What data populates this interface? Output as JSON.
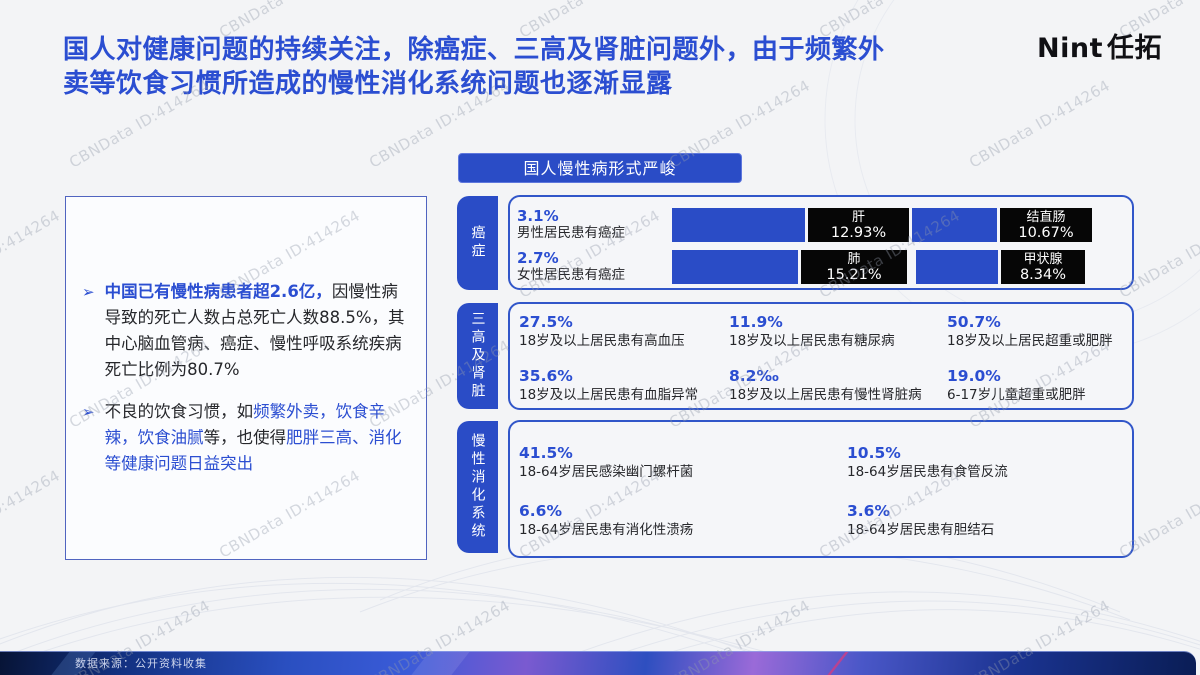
{
  "header": {
    "title_lines": [
      "国人对健康问题的持续关注，除癌症、三高及肾脏问题外，由于频繁外",
      "卖等饮食习惯所造成的慢性消化系统问题也逐渐显露"
    ],
    "logo_latin": "Nint",
    "logo_cjk": "任拓"
  },
  "banner": {
    "label": "国人慢性病形式严峻"
  },
  "left_panel": {
    "bullets": [
      {
        "segments": [
          {
            "text": "中国已有慢性病患者超2.6亿，",
            "blue": true,
            "bold": true
          },
          {
            "text": "因慢性病导致的死亡人数占总死亡人数88.5%，其中心脑血管病、癌症、慢性呼吸系统疾病死亡比例为80.7%",
            "blue": false
          }
        ]
      },
      {
        "segments": [
          {
            "text": "不良的饮食习惯，如",
            "blue": false
          },
          {
            "text": "频繁外卖，饮食辛辣，饮食油腻",
            "blue": true
          },
          {
            "text": "等，也使得",
            "blue": false
          },
          {
            "text": "肥胖三高、消化等健康问题日益突出",
            "blue": true
          }
        ]
      }
    ]
  },
  "sections": {
    "cancer": {
      "tab": "癌症",
      "rows": [
        {
          "value": "3.1%",
          "label": "男性居民患有癌症",
          "organs": [
            {
              "name": "肝",
              "pct": "12.93%"
            },
            {
              "name": "结直肠",
              "pct": "10.67%"
            }
          ]
        },
        {
          "value": "2.7%",
          "label": "女性居民患有癌症",
          "organs": [
            {
              "name": "肺",
              "pct": "15.21%"
            },
            {
              "name": "甲状腺",
              "pct": "8.34%"
            }
          ]
        }
      ]
    },
    "three_highs_kidney": {
      "tab": "三高及肾脏",
      "items": [
        {
          "value": "27.5%",
          "label": "18岁及以上居民患有高血压"
        },
        {
          "value": "11.9%",
          "label": "18岁及以上居民患有糖尿病"
        },
        {
          "value": "50.7%",
          "label": "18岁及以上居民超重或肥胖"
        },
        {
          "value": "35.6%",
          "label": "18岁及以上居民患有血脂异常"
        },
        {
          "value": "8.2‰",
          "label": "18岁及以上居民患有慢性肾脏病"
        },
        {
          "value": "19.0%",
          "label": "6-17岁儿童超重或肥胖"
        }
      ]
    },
    "digestive": {
      "tab": "慢性消化系统",
      "items": [
        {
          "value": "41.5%",
          "label": "18-64岁居民感染幽门螺杆菌"
        },
        {
          "value": "10.5%",
          "label": "18-64岁居民患有食管反流"
        },
        {
          "value": "6.6%",
          "label": "18-64岁居民患有消化性溃疡"
        },
        {
          "value": "3.6%",
          "label": "18-64岁居民患有胆结石"
        }
      ]
    }
  },
  "watermark": {
    "text": "CBNData ID:414264"
  },
  "footer": {
    "source": "数据来源：公开资料收集"
  },
  "colors": {
    "accent_blue": "#2a4cc6",
    "title_blue": "#2b4ed1",
    "text_dark": "#26272b",
    "black_box": "#060606",
    "page_bg": "#f3f4f6",
    "footer_navy": "#0a1c52",
    "footer_purple": "#7b5fd0"
  }
}
